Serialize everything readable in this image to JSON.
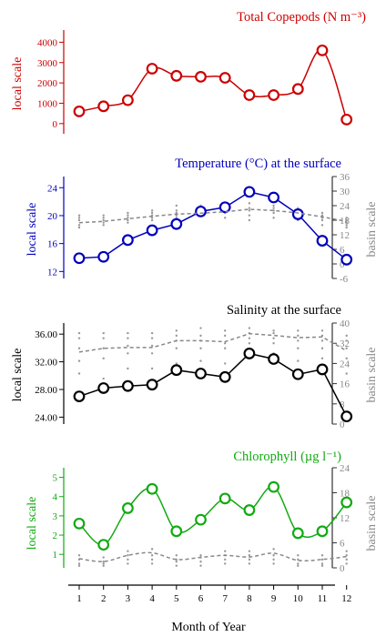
{
  "colors": {
    "copepods": "#cc0000",
    "temperature": "#0000bb",
    "salinity": "#000000",
    "chlorophyll": "#11aa11",
    "basin": "#888888",
    "axis": "#000000"
  },
  "chart_data": [
    {
      "type": "line",
      "title": "Total Copepods (N m⁻³)",
      "ylabel": "local scale",
      "x": [
        1,
        2,
        3,
        4,
        5,
        6,
        7,
        8,
        9,
        10,
        11,
        12
      ],
      "ylim": [
        -500,
        4600
      ],
      "yticks": [
        0,
        1000,
        2000,
        3000,
        4000
      ],
      "ytick_labels": [
        "0",
        "1000",
        "2000",
        "3000",
        "4000"
      ],
      "series": [
        {
          "values": [
            600,
            850,
            1150,
            2700,
            2350,
            2300,
            2250,
            1400,
            1400,
            1700,
            3600,
            200
          ]
        }
      ],
      "smooth": true,
      "marker": "open-circle",
      "grid": false
    },
    {
      "type": "line",
      "title": "Temperature (°C) at the surface",
      "ylabel": "local scale",
      "y2label": "basin scale",
      "x": [
        1,
        2,
        3,
        4,
        5,
        6,
        7,
        8,
        9,
        10,
        11,
        12
      ],
      "ylim": [
        11,
        25.6
      ],
      "yticks": [
        12,
        16,
        20,
        24
      ],
      "ytick_labels": [
        "12",
        "16",
        "20",
        "24"
      ],
      "y2lim": [
        -6,
        36
      ],
      "y2ticks": [
        -6,
        0,
        6,
        12,
        18,
        24,
        30,
        36
      ],
      "y2tick_labels": [
        "-6",
        "0",
        "6",
        "12",
        "18",
        "24",
        "30",
        "36"
      ],
      "series": [
        {
          "values": [
            13.9,
            14.1,
            16.5,
            17.9,
            18.8,
            20.6,
            21.2,
            23.4,
            22.6,
            20.2,
            16.4,
            13.7
          ],
          "axis": "local"
        },
        {
          "values": [
            17,
            17.5,
            18.6,
            19.6,
            20.5,
            20.9,
            21.5,
            22.5,
            22,
            21,
            19.4,
            17.5
          ],
          "axis": "basin",
          "dashed": true
        }
      ],
      "basin_scatter": [
        [
          15,
          16,
          18,
          19,
          20
        ],
        [
          16,
          17,
          18,
          19,
          20
        ],
        [
          17,
          18,
          19,
          20,
          21
        ],
        [
          18,
          19,
          20,
          21,
          22
        ],
        [
          19,
          20,
          21,
          22,
          24
        ],
        [
          20,
          21,
          22,
          23,
          24
        ],
        [
          19,
          21,
          22,
          23,
          24
        ],
        [
          18,
          20,
          22,
          23,
          25
        ],
        [
          19,
          21,
          22,
          23,
          24
        ],
        [
          18,
          19,
          21,
          22,
          23
        ],
        [
          16,
          18,
          19,
          20,
          21
        ],
        [
          15,
          16,
          17,
          18,
          19
        ]
      ],
      "smooth": false,
      "marker": "open-circle",
      "grid": false
    },
    {
      "type": "line",
      "title": "Salinity at the surface",
      "ylabel": "local scale",
      "y2label": "basin scale",
      "x": [
        1,
        2,
        3,
        4,
        5,
        6,
        7,
        8,
        9,
        10,
        11,
        12
      ],
      "ylim": [
        23,
        37.6
      ],
      "yticks": [
        24,
        28,
        32,
        36
      ],
      "ytick_labels": [
        "24.00",
        "28.00",
        "32.00",
        "36.00"
      ],
      "y2lim": [
        0,
        40
      ],
      "y2ticks": [
        0,
        8,
        16,
        24,
        32,
        40
      ],
      "y2tick_labels": [
        "0",
        "8",
        "16",
        "24",
        "32",
        "40"
      ],
      "series": [
        {
          "values": [
            27,
            28.2,
            28.5,
            28.7,
            30.8,
            30.3,
            29.8,
            33.2,
            32.4,
            30.2,
            30.9,
            24.1
          ],
          "axis": "local"
        },
        {
          "values": [
            28.5,
            30,
            30.3,
            30.3,
            33,
            33,
            32.6,
            35.8,
            35.1,
            34.2,
            34.5,
            29
          ],
          "axis": "basin",
          "dashed": true
        }
      ],
      "basin_scatter": [
        [
          20,
          25,
          30,
          34,
          36
        ],
        [
          18,
          26,
          30,
          34,
          36
        ],
        [
          22,
          28,
          31,
          34,
          36
        ],
        [
          22,
          28,
          31,
          34,
          36
        ],
        [
          24,
          30,
          33,
          35,
          37
        ],
        [
          25,
          30,
          33,
          35,
          38
        ],
        [
          24,
          30,
          32,
          35,
          37
        ],
        [
          26,
          32,
          34,
          36,
          38
        ],
        [
          28,
          32,
          34,
          36,
          37
        ],
        [
          25,
          30,
          33,
          35,
          37
        ],
        [
          26,
          30,
          33,
          35,
          37
        ],
        [
          20,
          26,
          30,
          33,
          35
        ]
      ],
      "smooth": false,
      "marker": "open-circle",
      "grid": false
    },
    {
      "type": "line",
      "title": "Chlorophyll (µg l⁻¹)",
      "ylabel": "local scale",
      "y2label": "basin scale",
      "xlabel": "Month of Year",
      "x": [
        1,
        2,
        3,
        4,
        5,
        6,
        7,
        8,
        9,
        10,
        11,
        12
      ],
      "x_tick_labels": [
        "1",
        "2",
        "3",
        "4",
        "5",
        "6",
        "7",
        "8",
        "9",
        "10",
        "11",
        "12"
      ],
      "ylim": [
        0.3,
        5.5
      ],
      "yticks": [
        1,
        2,
        3,
        4,
        5
      ],
      "ytick_labels": [
        "1",
        "2",
        "3",
        "4",
        "5"
      ],
      "y2lim": [
        0,
        24
      ],
      "y2ticks": [
        0,
        6,
        12,
        18,
        24
      ],
      "y2tick_labels": [
        "0",
        "6",
        "12",
        "18",
        "24"
      ],
      "series": [
        {
          "values": [
            2.6,
            1.5,
            3.4,
            4.4,
            2.2,
            2.8,
            3.9,
            3.3,
            4.5,
            2.1,
            2.2,
            3.7
          ],
          "axis": "local"
        },
        {
          "values": [
            2.2,
            1.5,
            3,
            3.6,
            2,
            2.5,
            3,
            2.6,
            3.5,
            1.8,
            2,
            2.7
          ],
          "axis": "basin",
          "dashed": true
        }
      ],
      "basin_scatter": [
        [
          0.5,
          1,
          2,
          3
        ],
        [
          0.5,
          1,
          1.5,
          2.5
        ],
        [
          1,
          2,
          3,
          4
        ],
        [
          1,
          2,
          3,
          4.5
        ],
        [
          0.5,
          1.5,
          2,
          3
        ],
        [
          0.5,
          1.5,
          2.5,
          3
        ],
        [
          1,
          2,
          3,
          4
        ],
        [
          1,
          2,
          3,
          4
        ],
        [
          1,
          2,
          3,
          4.5
        ],
        [
          0.5,
          1,
          2,
          3
        ],
        [
          0.5,
          1,
          2,
          3
        ],
        [
          1,
          2,
          3,
          4
        ]
      ],
      "smooth": true,
      "marker": "open-circle",
      "grid": false
    }
  ]
}
